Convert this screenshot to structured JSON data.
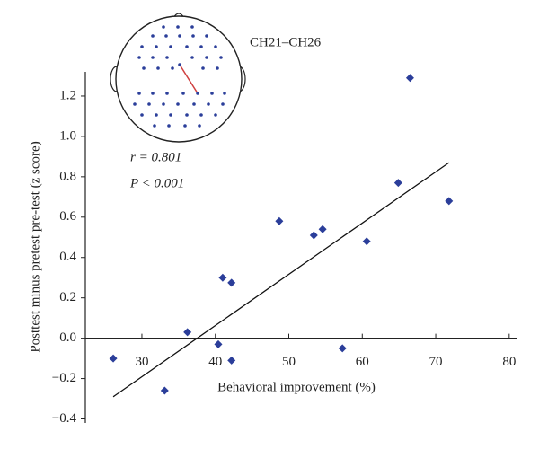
{
  "chart_data": {
    "type": "scatter",
    "xlabel": "Behavioral improvement (%)",
    "ylabel": "Posttest minus pretest pre-test (z score)",
    "annotations": [
      "CH21–CH26",
      "r = 0.801",
      "P < 0.001"
    ],
    "x": [
      26.1,
      33.1,
      36.2,
      40.4,
      41.0,
      42.2,
      42.2,
      48.7,
      53.4,
      54.6,
      57.3,
      60.6,
      64.9,
      66.5,
      71.8
    ],
    "values": [
      -0.1,
      -0.26,
      0.03,
      -0.03,
      0.3,
      0.275,
      -0.11,
      0.58,
      0.51,
      0.54,
      -0.05,
      0.48,
      0.77,
      1.29,
      0.68
    ],
    "color": "#2b3e9a",
    "fit": {
      "x": [
        26.1,
        71.8
      ],
      "y": [
        -0.29,
        0.87
      ]
    },
    "xlim": [
      22.3,
      81
    ],
    "ylim": [
      -0.42,
      1.32
    ],
    "xticks": [
      30,
      40,
      50,
      60,
      70,
      80
    ],
    "yticks": [
      {
        "value": -0.4,
        "label": "−0.4"
      },
      {
        "value": -0.2,
        "label": "−0.2"
      },
      {
        "value": 0,
        "label": "0.0"
      },
      0.2,
      0.4,
      0.6,
      0.8,
      {
        "value": 1,
        "label": "1.0"
      },
      1.2
    ]
  }
}
